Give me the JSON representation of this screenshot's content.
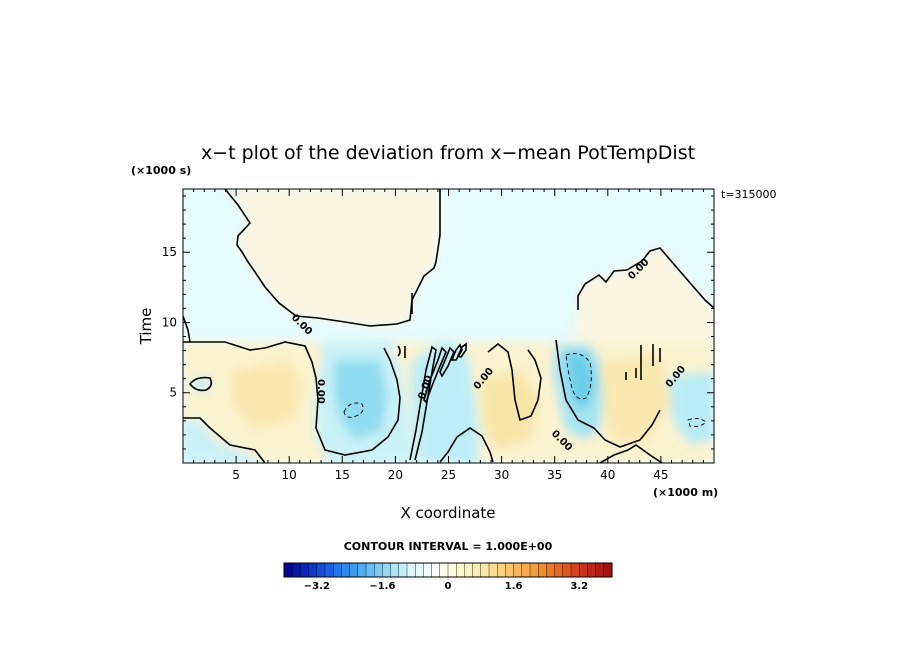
{
  "chart_data": {
    "type": "heatmap",
    "title": "x−t plot of the deviation from x−mean PotTempDist",
    "xlabel": "X coordinate",
    "ylabel": "Time",
    "x_unit": "(×1000 m)",
    "y_unit": "(×1000 s)",
    "time_stamp": "t=315000",
    "xlim": [
      0,
      50
    ],
    "ylim": [
      0,
      19.5
    ],
    "x_ticks": [
      5,
      10,
      15,
      20,
      25,
      30,
      35,
      40,
      45
    ],
    "x_tick_labels": [
      "5",
      "10",
      "15",
      "20",
      "25",
      "30",
      "35",
      "40",
      "45"
    ],
    "y_ticks": [
      5,
      10,
      15
    ],
    "y_tick_labels": [
      "5",
      "10",
      "15"
    ],
    "contour_interval_label": "CONTOUR INTERVAL = 1.000E+00",
    "contour_label": "0.00",
    "colorbar": {
      "min": -4.0,
      "max": 4.0,
      "step": 0.2,
      "tick_values": [
        -3.2,
        -1.6,
        0,
        1.6,
        3.2
      ],
      "tick_labels": [
        "−3.2",
        "−1.6",
        "0",
        "1.6",
        "3.2"
      ],
      "colors": [
        "#00008b",
        "#0a2fc8",
        "#1f6fe8",
        "#47a9f0",
        "#8fd6f5",
        "#dcf8fb",
        "#ffffff",
        "#fdf8cd",
        "#fbe7a2",
        "#f8c36a",
        "#f39a38",
        "#e3621f",
        "#c62a1c",
        "#9e1010"
      ]
    },
    "regions": [
      {
        "name": "upper-left-warm",
        "x": [
          2,
          24
        ],
        "y": [
          9.5,
          19.5
        ],
        "sign": "positive",
        "value": 0.3
      },
      {
        "name": "upper-right-warm",
        "x": [
          37,
          50
        ],
        "y": [
          8.5,
          16
        ],
        "sign": "positive",
        "value": 0.3
      },
      {
        "name": "upper-cool-background",
        "x": [
          0,
          50
        ],
        "y": [
          8.8,
          19.5
        ],
        "sign": "negative",
        "value": -0.3
      },
      {
        "name": "lower-left-warm",
        "x": [
          0,
          13
        ],
        "y": [
          0,
          8.8
        ],
        "sign": "positive",
        "value": 0.6
      },
      {
        "name": "cool-band-15-22",
        "x": [
          13,
          22
        ],
        "y": [
          0,
          8.8
        ],
        "sign": "negative",
        "value": -1.2
      },
      {
        "name": "warm-band-25-35",
        "x": [
          25,
          35
        ],
        "y": [
          0,
          8.8
        ],
        "sign": "positive",
        "value": 0.6
      },
      {
        "name": "cool-band-36-39",
        "x": [
          35,
          39.5
        ],
        "y": [
          1,
          8.8
        ],
        "sign": "negative",
        "value": -1.4
      },
      {
        "name": "cool-right-edge",
        "x": [
          46,
          50
        ],
        "y": [
          1,
          6
        ],
        "sign": "negative",
        "value": -1.2
      }
    ]
  }
}
